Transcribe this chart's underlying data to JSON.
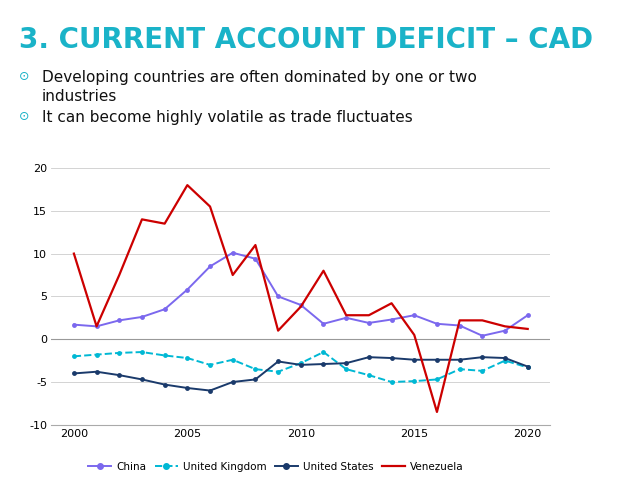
{
  "title": "3. CURRENT ACCOUNT DEFICIT – CAD",
  "title_color": "#1AB3C8",
  "bullet1_line1": "Developing countries are often dominated by one or two",
  "bullet1_line2": "industries",
  "bullet2": "It can become highly volatile as trade fluctuates",
  "background_color": "#ffffff",
  "plot_bg": "#ffffff",
  "right_bar_color": "#c8cac8",
  "years": [
    2000,
    2001,
    2002,
    2003,
    2004,
    2005,
    2006,
    2007,
    2008,
    2009,
    2010,
    2011,
    2012,
    2013,
    2014,
    2015,
    2016,
    2017,
    2018,
    2019,
    2020
  ],
  "china": [
    1.7,
    1.5,
    2.2,
    2.6,
    3.5,
    5.8,
    8.5,
    10.1,
    9.4,
    5.0,
    4.0,
    1.8,
    2.5,
    1.9,
    2.3,
    2.8,
    1.8,
    1.6,
    0.4,
    1.0,
    2.8
  ],
  "uk": [
    -2.0,
    -1.8,
    -1.6,
    -1.5,
    -1.9,
    -2.2,
    -3.0,
    -2.4,
    -3.5,
    -3.8,
    -2.8,
    -1.5,
    -3.5,
    -4.2,
    -5.0,
    -4.9,
    -4.7,
    -3.5,
    -3.7,
    -2.5,
    -3.3
  ],
  "us": [
    -4.0,
    -3.8,
    -4.2,
    -4.7,
    -5.3,
    -5.7,
    -6.0,
    -5.0,
    -4.7,
    -2.6,
    -3.0,
    -2.9,
    -2.8,
    -2.1,
    -2.2,
    -2.4,
    -2.4,
    -2.4,
    -2.1,
    -2.2,
    -3.2
  ],
  "venezuela": [
    10.0,
    1.5,
    7.5,
    14.0,
    13.5,
    18.0,
    15.5,
    7.5,
    11.0,
    1.0,
    3.8,
    8.0,
    2.8,
    2.8,
    4.2,
    0.5,
    -8.5,
    2.2,
    2.2,
    1.5,
    1.2
  ],
  "china_color": "#7B68EE",
  "uk_color": "#00B8D4",
  "us_color": "#1A3A6B",
  "venezuela_color": "#CC0000",
  "ylim": [
    -10,
    20
  ],
  "yticks": [
    -10,
    -5,
    0,
    5,
    10,
    15,
    20
  ],
  "xticks": [
    2000,
    2005,
    2010,
    2015,
    2020
  ],
  "title_fontsize": 20,
  "bullet_fontsize": 11
}
